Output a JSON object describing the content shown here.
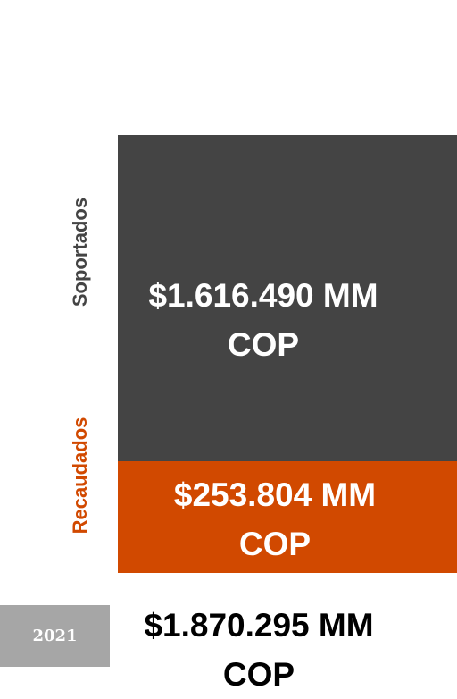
{
  "segments": [
    {
      "name": "Soportados",
      "label": "$1.616.490 MM COP",
      "color": "#444444"
    },
    {
      "name": "Recaudados",
      "label": "$253.804 MM COP",
      "color": "#d14900"
    }
  ],
  "total": {
    "year": "2021",
    "label": "$1.870.295 MM COP"
  }
}
